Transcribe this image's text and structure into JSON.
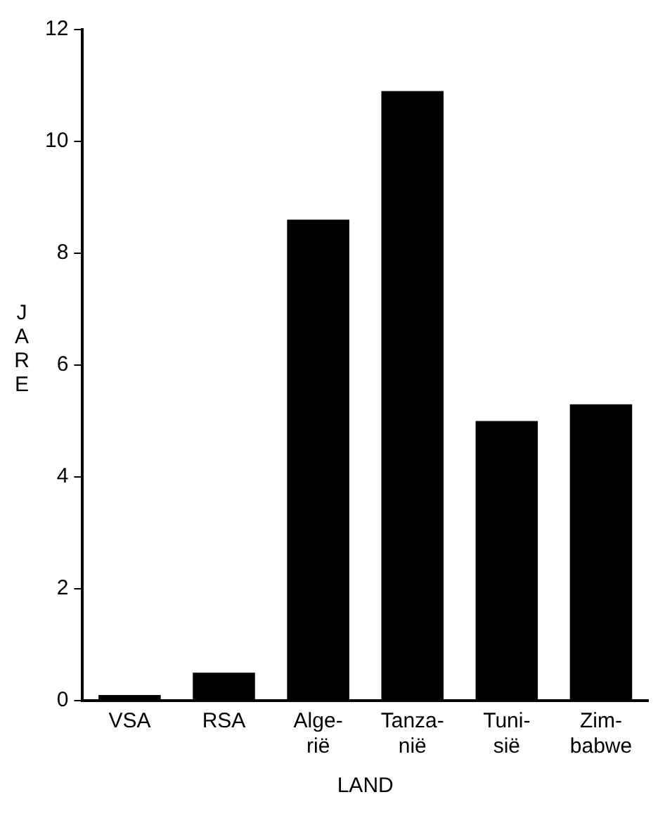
{
  "chart_data": {
    "type": "bar",
    "xlabel": "LAND",
    "ylabel": "JARE",
    "categories": [
      "VSA",
      "RSA",
      "Alge-\nrië",
      "Tanza-\nnië",
      "Tuni-\nsië",
      "Zim-\nbabwe"
    ],
    "values": [
      0.1,
      0.5,
      8.6,
      10.9,
      5.0,
      5.3
    ],
    "color": "#000000",
    "ylim": [
      0,
      12
    ],
    "yticks": [
      0,
      2,
      4,
      6,
      8,
      10,
      12
    ],
    "grid": false,
    "legend": false
  }
}
